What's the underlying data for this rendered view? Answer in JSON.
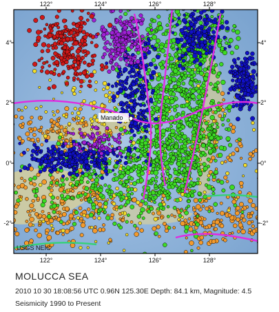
{
  "map": {
    "region_name": "MOLUCCA SEA",
    "city_label": "Manado",
    "logo_text": "USGS NEIC",
    "lon_ticks": [
      "122°",
      "124°",
      "126°",
      "128°"
    ],
    "lat_ticks": [
      "4°",
      "2°",
      "0°",
      "-2°"
    ],
    "colors": {
      "ocean": "#8fb3d9",
      "ocean_deep": "#6f9ccc",
      "land": "#d6cf9c",
      "plate_boundary": "#e02ae0",
      "shallow_quakes": "#f39a2c",
      "intermediate_quakes": "#f5df2a",
      "mid_depth_quakes": "#3ddc24",
      "deep_quakes": "#1010c8",
      "very_deep_quakes": "#a020d8",
      "deepest_quakes": "#d01818",
      "dot_outline": "#000000"
    }
  },
  "caption": {
    "title": "MOLUCCA SEA",
    "event": "2010 10 30 18:08:56 UTC 0.96N 125.30E Depth: 84.1 km, Magnitude: 4.5",
    "range": "Seismicity 1990 to Present"
  }
}
